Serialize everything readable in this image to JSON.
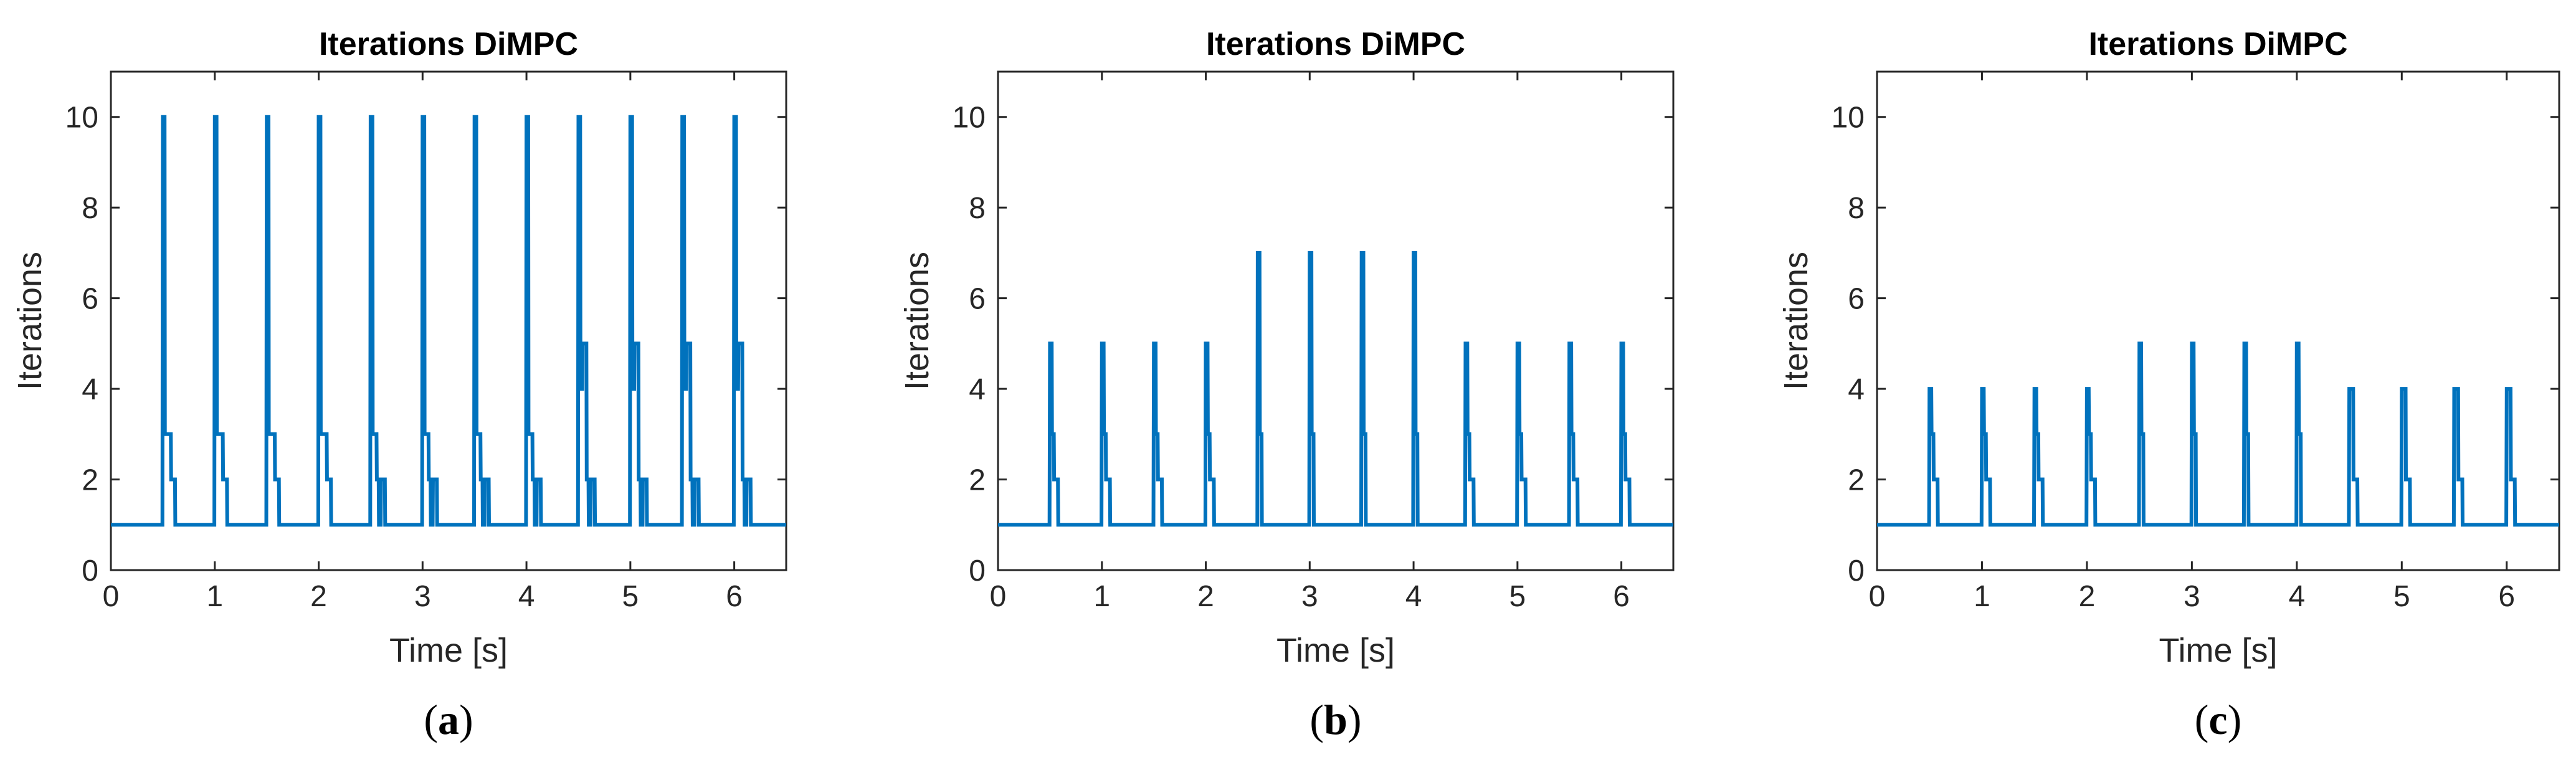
{
  "figure": {
    "line_color": "#0072BD",
    "axes_color": "#262626"
  },
  "chart_data": [
    {
      "type": "line",
      "title": "Iterations DiMPC",
      "xlabel": "Time [s]",
      "ylabel": "Iterations",
      "xlim": [
        0,
        6.5
      ],
      "ylim": [
        0,
        11
      ],
      "xticks": [
        0,
        1,
        2,
        3,
        4,
        5,
        6
      ],
      "yticks": [
        0,
        2,
        4,
        6,
        8,
        10
      ],
      "caption": {
        "open": "(",
        "letter": "a",
        "close": ")"
      },
      "baseline": 1,
      "spike_times": [
        0.5,
        1.0,
        1.5,
        2.0,
        2.5,
        3.0,
        3.5,
        4.0,
        4.5,
        5.0,
        5.5,
        6.0
      ],
      "spike_shapes": [
        [
          10,
          3,
          3,
          3,
          2,
          2
        ],
        [
          10,
          3,
          3,
          3,
          2,
          2
        ],
        [
          10,
          3,
          3,
          3,
          2,
          2
        ],
        [
          10,
          3,
          3,
          3,
          2,
          2
        ],
        [
          10,
          3,
          3,
          2,
          1,
          2,
          2
        ],
        [
          10,
          3,
          3,
          2,
          1,
          2,
          2
        ],
        [
          10,
          3,
          3,
          2,
          1,
          2,
          2
        ],
        [
          10,
          3,
          3,
          2,
          1,
          2,
          2
        ],
        [
          10,
          4,
          5,
          5,
          2,
          1,
          2,
          2
        ],
        [
          10,
          4,
          5,
          5,
          2,
          1,
          2,
          2
        ],
        [
          10,
          4,
          5,
          5,
          2,
          1,
          2,
          2
        ],
        [
          10,
          4,
          5,
          5,
          2,
          1,
          2,
          2
        ]
      ],
      "sample_step": 0.02
    },
    {
      "type": "line",
      "title": "Iterations DiMPC",
      "xlabel": "Time [s]",
      "ylabel": "Iterations",
      "xlim": [
        0,
        6.5
      ],
      "ylim": [
        0,
        11
      ],
      "xticks": [
        0,
        1,
        2,
        3,
        4,
        5,
        6
      ],
      "yticks": [
        0,
        2,
        4,
        6,
        8,
        10
      ],
      "caption": {
        "open": "(",
        "letter": "b",
        "close": ")"
      },
      "baseline": 1,
      "spike_times": [
        0.5,
        1.0,
        1.5,
        2.0,
        2.5,
        3.0,
        3.5,
        4.0,
        4.5,
        5.0,
        5.5,
        6.0
      ],
      "spike_shapes": [
        [
          5,
          3,
          2,
          2
        ],
        [
          5,
          3,
          2,
          2
        ],
        [
          5,
          3,
          2,
          2
        ],
        [
          5,
          3,
          2,
          2
        ],
        [
          7,
          3
        ],
        [
          7,
          3
        ],
        [
          7,
          3
        ],
        [
          7,
          3
        ],
        [
          5,
          3,
          2,
          2
        ],
        [
          5,
          3,
          2,
          2
        ],
        [
          5,
          3,
          2,
          2
        ],
        [
          5,
          3,
          2,
          2
        ]
      ],
      "sample_step": 0.02
    },
    {
      "type": "line",
      "title": "Iterations DiMPC",
      "xlabel": "Time [s]",
      "ylabel": "Iterations",
      "xlim": [
        0,
        6.5
      ],
      "ylim": [
        0,
        11
      ],
      "xticks": [
        0,
        1,
        2,
        3,
        4,
        5,
        6
      ],
      "yticks": [
        0,
        2,
        4,
        6,
        8,
        10
      ],
      "caption": {
        "open": "(",
        "letter": "c",
        "close": ")"
      },
      "baseline": 1,
      "spike_times": [
        0.5,
        1.0,
        1.5,
        2.0,
        2.5,
        3.0,
        3.5,
        4.0,
        4.5,
        5.0,
        5.5,
        6.0
      ],
      "spike_shapes": [
        [
          4,
          3,
          2,
          2
        ],
        [
          4,
          3,
          2,
          2
        ],
        [
          4,
          3,
          2,
          2
        ],
        [
          4,
          3,
          2,
          2
        ],
        [
          5,
          3
        ],
        [
          5,
          3
        ],
        [
          5,
          3
        ],
        [
          5,
          3
        ],
        [
          4,
          4,
          2,
          2
        ],
        [
          4,
          4,
          2,
          2
        ],
        [
          4,
          4,
          2,
          2
        ],
        [
          4,
          4,
          2,
          2
        ]
      ],
      "sample_step": 0.02
    }
  ]
}
